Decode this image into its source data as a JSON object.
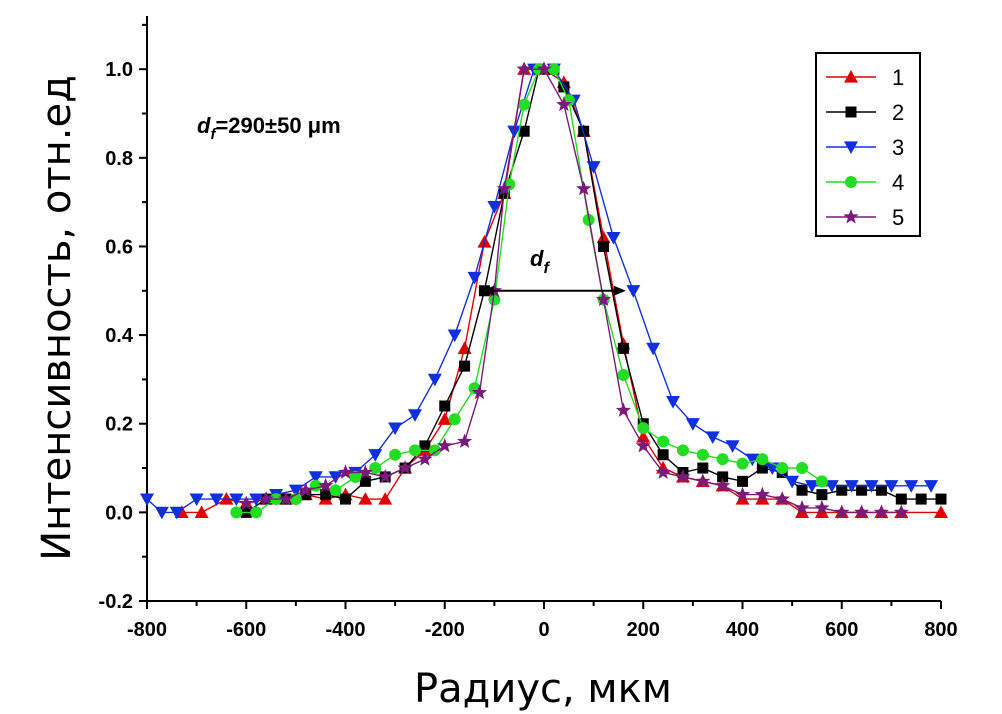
{
  "chart_data": {
    "type": "line",
    "xlabel": "Радиус, мкм",
    "ylabel": "Интенсивность, отн.ед",
    "xlim": [
      -800,
      800
    ],
    "ylim": [
      -0.2,
      1.12
    ],
    "x_ticks": [
      "-800",
      "-600",
      "-400",
      "-200",
      "0",
      "200",
      "400",
      "600",
      "800"
    ],
    "y_ticks": [
      "-0.2",
      "0.0",
      "0.2",
      "0.4",
      "0.6",
      "0.8",
      "1.0"
    ],
    "x_tick_values": [
      -800,
      -600,
      -400,
      -200,
      0,
      200,
      400,
      600,
      800
    ],
    "y_tick_values": [
      -0.2,
      0.0,
      0.2,
      0.4,
      0.6,
      0.8,
      1.0
    ],
    "grid": false,
    "legend_position": "top-right",
    "annotation": {
      "text_d": "d",
      "text_sub": "f",
      "text_value": "=290±50 μm"
    },
    "arrow_label": {
      "text_d": "d",
      "text_sub": "f",
      "x_from": -125,
      "x_to": 165,
      "y": 0.5
    },
    "series": [
      {
        "name": "1",
        "color": "#e00000",
        "marker": "triangle-up",
        "points": [
          [
            -730,
            0.0
          ],
          [
            -690,
            0.0
          ],
          [
            -640,
            0.03
          ],
          [
            -600,
            0.02
          ],
          [
            -560,
            0.03
          ],
          [
            -520,
            0.03
          ],
          [
            -480,
            0.04
          ],
          [
            -440,
            0.03
          ],
          [
            -400,
            0.04
          ],
          [
            -360,
            0.03
          ],
          [
            -320,
            0.03
          ],
          [
            -280,
            0.1
          ],
          [
            -240,
            0.14
          ],
          [
            -200,
            0.21
          ],
          [
            -160,
            0.37
          ],
          [
            -120,
            0.61
          ],
          [
            -80,
            0.72
          ],
          [
            -40,
            1.0
          ],
          [
            0,
            1.0
          ],
          [
            40,
            0.97
          ],
          [
            80,
            0.86
          ],
          [
            120,
            0.62
          ],
          [
            160,
            0.38
          ],
          [
            200,
            0.17
          ],
          [
            240,
            0.1
          ],
          [
            280,
            0.08
          ],
          [
            320,
            0.07
          ],
          [
            360,
            0.06
          ],
          [
            400,
            0.03
          ],
          [
            440,
            0.03
          ],
          [
            480,
            0.03
          ],
          [
            520,
            0.0
          ],
          [
            560,
            0.0
          ],
          [
            600,
            0.0
          ],
          [
            640,
            0.0
          ],
          [
            680,
            0.0
          ],
          [
            720,
            0.0
          ],
          [
            800,
            0.0
          ]
        ]
      },
      {
        "name": "2",
        "color": "#000000",
        "marker": "square",
        "points": [
          [
            -600,
            0.0
          ],
          [
            -560,
            0.03
          ],
          [
            -520,
            0.03
          ],
          [
            -480,
            0.04
          ],
          [
            -440,
            0.04
          ],
          [
            -400,
            0.03
          ],
          [
            -360,
            0.07
          ],
          [
            -320,
            0.08
          ],
          [
            -280,
            0.1
          ],
          [
            -240,
            0.15
          ],
          [
            -200,
            0.24
          ],
          [
            -160,
            0.33
          ],
          [
            -120,
            0.5
          ],
          [
            -80,
            0.72
          ],
          [
            -40,
            0.86
          ],
          [
            -10,
            1.0
          ],
          [
            20,
            1.0
          ],
          [
            40,
            0.96
          ],
          [
            80,
            0.86
          ],
          [
            120,
            0.6
          ],
          [
            160,
            0.37
          ],
          [
            200,
            0.2
          ],
          [
            240,
            0.13
          ],
          [
            280,
            0.09
          ],
          [
            320,
            0.1
          ],
          [
            360,
            0.08
          ],
          [
            400,
            0.07
          ],
          [
            440,
            0.1
          ],
          [
            480,
            0.09
          ],
          [
            520,
            0.05
          ],
          [
            560,
            0.04
          ],
          [
            600,
            0.05
          ],
          [
            640,
            0.05
          ],
          [
            680,
            0.05
          ],
          [
            720,
            0.03
          ],
          [
            760,
            0.03
          ],
          [
            800,
            0.03
          ]
        ]
      },
      {
        "name": "3",
        "color": "#1030e0",
        "marker": "triangle-down",
        "points": [
          [
            -800,
            0.03
          ],
          [
            -770,
            0.0
          ],
          [
            -740,
            0.0
          ],
          [
            -700,
            0.03
          ],
          [
            -660,
            0.03
          ],
          [
            -620,
            0.03
          ],
          [
            -580,
            0.03
          ],
          [
            -540,
            0.04
          ],
          [
            -500,
            0.05
          ],
          [
            -460,
            0.08
          ],
          [
            -420,
            0.08
          ],
          [
            -380,
            0.09
          ],
          [
            -340,
            0.13
          ],
          [
            -300,
            0.19
          ],
          [
            -260,
            0.22
          ],
          [
            -220,
            0.3
          ],
          [
            -180,
            0.4
          ],
          [
            -140,
            0.53
          ],
          [
            -100,
            0.69
          ],
          [
            -60,
            0.86
          ],
          [
            -20,
            1.0
          ],
          [
            20,
            1.0
          ],
          [
            60,
            0.93
          ],
          [
            100,
            0.78
          ],
          [
            140,
            0.62
          ],
          [
            180,
            0.5
          ],
          [
            220,
            0.37
          ],
          [
            260,
            0.25
          ],
          [
            300,
            0.2
          ],
          [
            340,
            0.17
          ],
          [
            380,
            0.15
          ],
          [
            420,
            0.12
          ],
          [
            460,
            0.1
          ],
          [
            500,
            0.07
          ],
          [
            540,
            0.06
          ],
          [
            580,
            0.06
          ],
          [
            620,
            0.06
          ],
          [
            660,
            0.06
          ],
          [
            700,
            0.06
          ],
          [
            740,
            0.06
          ],
          [
            780,
            0.06
          ]
        ]
      },
      {
        "name": "4",
        "color": "#22dd22",
        "marker": "circle",
        "points": [
          [
            -620,
            0.0
          ],
          [
            -580,
            0.0
          ],
          [
            -540,
            0.03
          ],
          [
            -500,
            0.03
          ],
          [
            -460,
            0.06
          ],
          [
            -420,
            0.05
          ],
          [
            -380,
            0.08
          ],
          [
            -340,
            0.1
          ],
          [
            -300,
            0.13
          ],
          [
            -260,
            0.14
          ],
          [
            -220,
            0.14
          ],
          [
            -180,
            0.21
          ],
          [
            -140,
            0.28
          ],
          [
            -100,
            0.48
          ],
          [
            -70,
            0.74
          ],
          [
            -40,
            0.92
          ],
          [
            -10,
            1.0
          ],
          [
            20,
            1.0
          ],
          [
            50,
            0.93
          ],
          [
            90,
            0.66
          ],
          [
            120,
            0.48
          ],
          [
            160,
            0.31
          ],
          [
            200,
            0.19
          ],
          [
            240,
            0.16
          ],
          [
            280,
            0.14
          ],
          [
            320,
            0.13
          ],
          [
            360,
            0.12
          ],
          [
            400,
            0.11
          ],
          [
            440,
            0.12
          ],
          [
            480,
            0.1
          ],
          [
            520,
            0.1
          ],
          [
            560,
            0.07
          ]
        ]
      },
      {
        "name": "5",
        "color": "#7a1a7a",
        "marker": "star",
        "points": [
          [
            -600,
            0.02
          ],
          [
            -560,
            0.03
          ],
          [
            -520,
            0.03
          ],
          [
            -480,
            0.05
          ],
          [
            -440,
            0.06
          ],
          [
            -400,
            0.09
          ],
          [
            -360,
            0.09
          ],
          [
            -320,
            0.08
          ],
          [
            -280,
            0.1
          ],
          [
            -240,
            0.12
          ],
          [
            -200,
            0.15
          ],
          [
            -160,
            0.16
          ],
          [
            -130,
            0.27
          ],
          [
            -100,
            0.5
          ],
          [
            -80,
            0.73
          ],
          [
            -40,
            1.0
          ],
          [
            0,
            1.0
          ],
          [
            40,
            0.92
          ],
          [
            80,
            0.73
          ],
          [
            120,
            0.48
          ],
          [
            160,
            0.23
          ],
          [
            200,
            0.15
          ],
          [
            240,
            0.09
          ],
          [
            280,
            0.08
          ],
          [
            320,
            0.07
          ],
          [
            360,
            0.06
          ],
          [
            400,
            0.04
          ],
          [
            440,
            0.04
          ],
          [
            480,
            0.03
          ],
          [
            520,
            0.01
          ],
          [
            560,
            0.01
          ],
          [
            600,
            0.0
          ],
          [
            640,
            0.0
          ],
          [
            680,
            0.0
          ],
          [
            720,
            0.0
          ]
        ]
      }
    ]
  }
}
